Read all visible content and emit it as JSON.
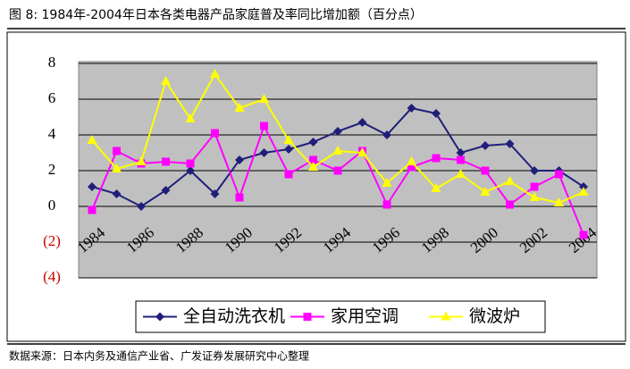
{
  "chart_data": {
    "type": "line",
    "title": "图 8:  1984年-2004年日本各类电器产品家庭普及率同比增加额（百分点）",
    "source": "数据来源：日本内务及通信产业省、广发证券发展研究中心整理",
    "categories": [
      "1984",
      null,
      "1986",
      null,
      "1988",
      null,
      "1990",
      null,
      "1992",
      null,
      "1994",
      null,
      "1996",
      null,
      "1998",
      null,
      "2000",
      null,
      "2002",
      null,
      "2004"
    ],
    "series": [
      {
        "name": "全自动洗衣机",
        "color": "#1f1f7a",
        "marker": "diamond",
        "values": [
          1.1,
          0.7,
          0,
          0.9,
          2.0,
          0.7,
          2.6,
          3.0,
          3.2,
          3.6,
          4.2,
          4.7,
          4.0,
          5.5,
          5.2,
          3.0,
          3.4,
          3.5,
          2.0,
          2.0,
          1.1
        ]
      },
      {
        "name": "家用空调",
        "color": "#ff00ff",
        "marker": "square",
        "values": [
          -0.2,
          3.1,
          2.4,
          2.5,
          2.4,
          4.1,
          0.5,
          4.5,
          1.8,
          2.6,
          2.0,
          3.1,
          0.1,
          2.2,
          2.7,
          2.6,
          2.0,
          0.1,
          1.1,
          1.8,
          -1.6
        ]
      },
      {
        "name": "微波炉",
        "color": "#ffff00",
        "marker": "triangle",
        "values": [
          3.7,
          2.1,
          2.5,
          7.0,
          4.9,
          7.4,
          5.5,
          6.0,
          3.7,
          2.2,
          3.1,
          3.0,
          1.3,
          2.5,
          1.0,
          1.8,
          0.8,
          1.4,
          0.5,
          0.2,
          0.8
        ]
      }
    ],
    "ylim": [
      -4,
      8
    ],
    "yticks": [
      {
        "value": -4,
        "label": "(4)"
      },
      {
        "value": -2,
        "label": "(2)"
      },
      0,
      2,
      4,
      6,
      8
    ],
    "negative_tick_color": "#cc0000",
    "plot_background": "#c0c0c0",
    "grid": true,
    "legend": "bottom"
  }
}
